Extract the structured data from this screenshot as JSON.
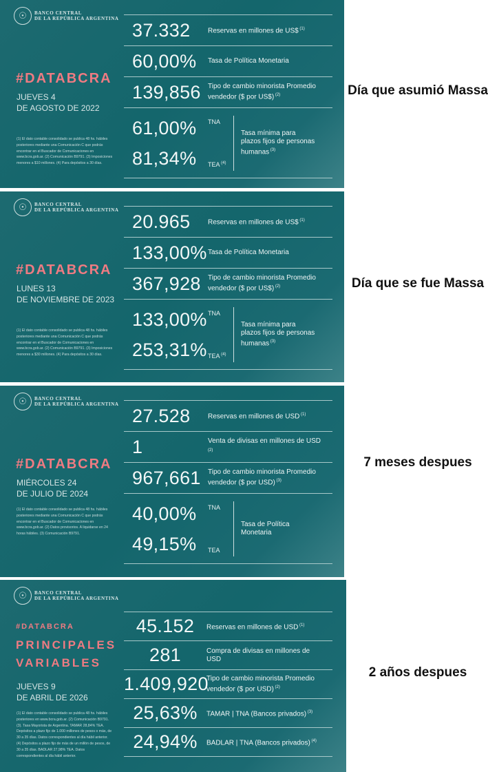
{
  "bank_name": [
    "BANCO CENTRAL",
    "DE LA REPÚBLICA ARGENTINA"
  ],
  "colors": {
    "card": "#14666c",
    "hashtag": "#ef7b82"
  },
  "cards": [
    {
      "hashtag": "#DATABCRA",
      "date": [
        "JUEVES 4",
        "DE AGOSTO DE 2022"
      ],
      "caption": "Día que asumió Massa",
      "notes": "(1) El dato contable consolidado se publica 48 hs. hábiles posteriores mediante una Comunicación C que podrás encontrar en el Buscador de Comunicaciones en www.bcra.gob.ar. (2) Comunicación B9791. (3) Imposiciones menores a $10 millones. (4) Para depósitos a 30 días.",
      "rows": [
        {
          "value": "37.332",
          "label": "Reservas en millones de US$",
          "sup": "(1)"
        },
        {
          "value": "60,00%",
          "label": "Tasa de Política Monetaria",
          "sup": ""
        },
        {
          "value": "139,856",
          "label": "Tipo de cambio minorista Promedio vendedor ($ por US$)",
          "sup": "(2)"
        }
      ],
      "pair": {
        "values": [
          "61,00%",
          "81,34%"
        ],
        "tags": [
          "TNA",
          "TEA"
        ],
        "tag_sups": [
          "",
          "(4)"
        ],
        "label": "Tasa mínima para plazos fijos de personas humanas",
        "sup": "(3)"
      }
    },
    {
      "hashtag": "#DATABCRA",
      "date": [
        "LUNES 13",
        "DE NOVIEMBRE DE 2023"
      ],
      "caption": "Día que se fue Massa",
      "notes": "(1) El dato contable consolidado se publica 48 hs. hábiles posteriores mediante una Comunicación C que podrás encontrar en el Buscador de Comunicaciones en www.bcra.gob.ar. (2) Comunicación B9791. (3) Imposiciones menores a $30 millones. (4) Para depósitos a 30 días.",
      "rows": [
        {
          "value": "20.965",
          "label": "Reservas en millones de US$",
          "sup": "(1)"
        },
        {
          "value": "133,00%",
          "label": "Tasa de Política Monetaria",
          "sup": ""
        },
        {
          "value": "367,928",
          "label": "Tipo de cambio minorista Promedio vendedor ($ por US$)",
          "sup": "(2)"
        }
      ],
      "pair": {
        "values": [
          "133,00%",
          "253,31%"
        ],
        "tags": [
          "TNA",
          "TEA"
        ],
        "tag_sups": [
          "",
          "(4)"
        ],
        "label": "Tasa mínima para plazos fijos de personas humanas",
        "sup": "(3)"
      }
    },
    {
      "hashtag": "#DATABCRA",
      "date": [
        "MIÉRCOLES 24",
        "DE JULIO DE 2024"
      ],
      "caption": "7 meses despues",
      "notes": "(1) El dato contable consolidado se publica 48 hs. hábiles posteriores mediante una Comunicación C que podrás encontrar en el Buscador de Comunicaciones en www.bcra.gob.ar. (2) Datos provisorios. A liquidarse en 24 horas hábiles. (3) Comunicación B9791.",
      "rows": [
        {
          "value": "27.528",
          "label": "Reservas en millones de USD",
          "sup": "(1)"
        },
        {
          "value": "1",
          "label": "Venta de divisas en millones de USD",
          "sup": "(2)"
        },
        {
          "value": "967,661",
          "label": "Tipo de cambio minorista Promedio vendedor ($ por USD)",
          "sup": "(3)"
        }
      ],
      "pair": {
        "values": [
          "40,00%",
          "49,15%"
        ],
        "tags": [
          "TNA",
          "TEA"
        ],
        "tag_sups": [
          "",
          ""
        ],
        "label": "Tasa de Política Monetaria",
        "sup": ""
      }
    },
    {
      "hashtag": "#DATABCRA",
      "title": [
        "PRINCIPALES",
        "VARIABLES"
      ],
      "date": [
        "JUEVES 9",
        "DE ABRIL DE 2026"
      ],
      "caption": "2 años despues",
      "notes": "(1) El dato contable consolidado se publica 48 hs. hábiles posteriores en www.bcra.gob.ar. (2) Comunicación B9791. (3). Tasa Mayorista de Argentina. TAMAR 28,84% TEA. Depósitos a plazo fijo de 1.000 millones de pesos o más, de 30 a 35 días. Datos correspondientes al día hábil anterior. (4) Depósitos a plazo fijo de más de un millón de pesos, de 30 a 35 días. BADLAR 27,98% TEA. Datos correspondientes al día hábil anterior.",
      "rows": [
        {
          "value": "45.152",
          "label": "Reservas en millones de USD",
          "sup": "(1)"
        },
        {
          "value": "281",
          "label": "Compra de divisas en millones de USD",
          "sup": ""
        },
        {
          "value": "1.409,920",
          "label": "Tipo de cambio minorista Promedio vendedor ($ por USD)",
          "sup": "(2)"
        },
        {
          "value": "25,63%",
          "label": "TAMAR | TNA (Bancos privados)",
          "sup": "(3)"
        },
        {
          "value": "24,94%",
          "label": "BADLAR | TNA (Bancos privados)",
          "sup": "(4)"
        }
      ]
    }
  ]
}
